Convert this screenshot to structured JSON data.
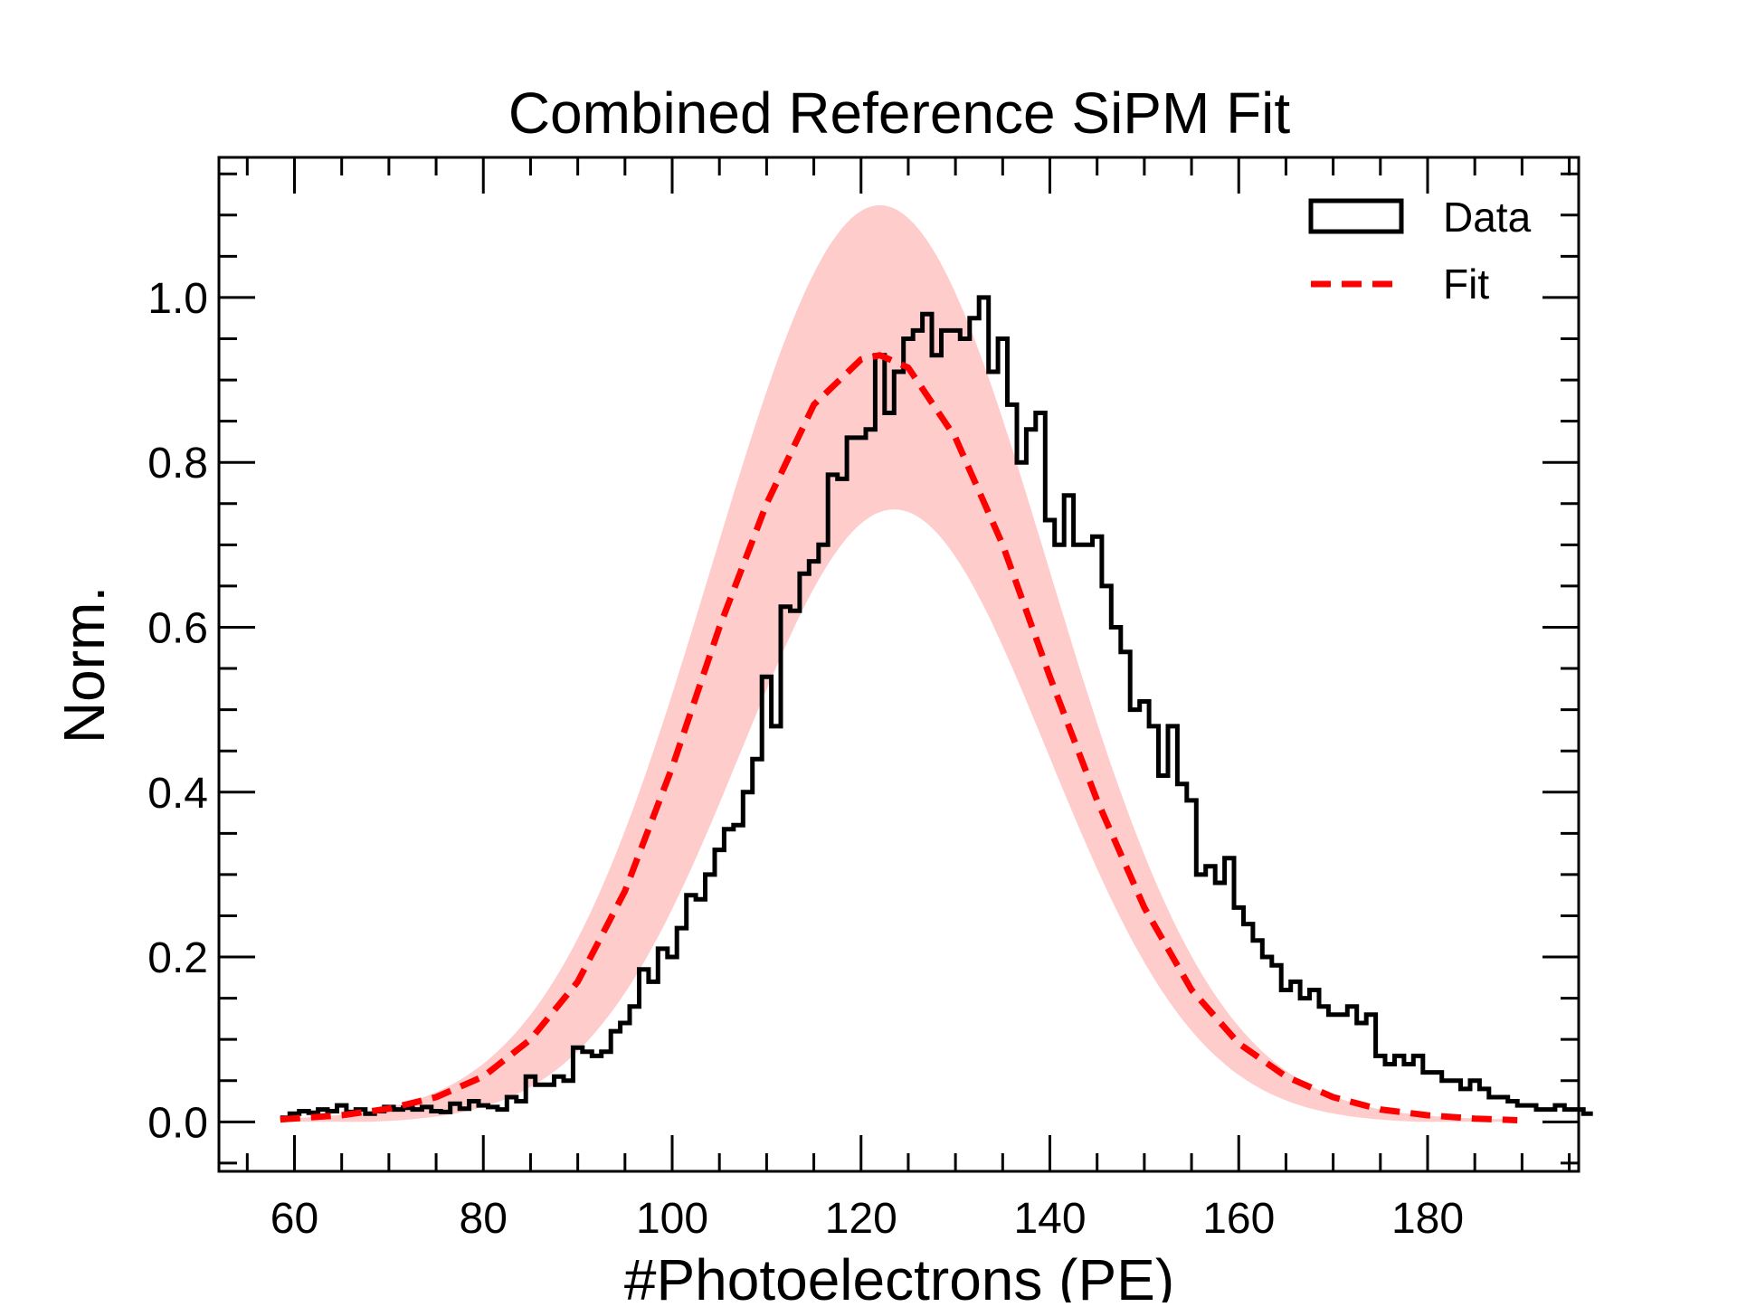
{
  "chart_data": {
    "type": "line",
    "title": "Combined Reference SiPM Fit",
    "xlabel": "#Photoelectrons (PE)",
    "ylabel": "Norm.",
    "xlim": [
      52,
      196
    ],
    "ylim": [
      -0.06,
      1.17
    ],
    "xticks": [
      "60",
      "80",
      "100",
      "120",
      "140",
      "160",
      "180"
    ],
    "yticks": [
      "0.0",
      "0.2",
      "0.4",
      "0.6",
      "0.8",
      "1.0"
    ],
    "grid": false,
    "legend_position": "top-right",
    "legend": [
      {
        "label": "Data",
        "style": "step-outline"
      },
      {
        "label": "Fit",
        "style": "dashed"
      }
    ],
    "colors": {
      "data": "#000000",
      "fit": "#ff0000",
      "band": "#ffcccc"
    },
    "band": {
      "description_x_range": [
        58.5,
        189.5
      ],
      "upper_peak": 1.11,
      "upper_peak_x": 122,
      "lower_peak": 0.745,
      "lower_peak_x": 123.5
    },
    "fit": {
      "x_range": [
        58.5,
        189.5
      ],
      "peak_x": 122,
      "peak_y": 0.93
    },
    "series": [
      {
        "name": "Data",
        "type": "step",
        "x_edges_start": 58.5,
        "bin_width": 1,
        "values": [
          0.005,
          0.01,
          0.013,
          0.011,
          0.015,
          0.013,
          0.02,
          0.012,
          0.015,
          0.01,
          0.013,
          0.018,
          0.015,
          0.017,
          0.015,
          0.018,
          0.013,
          0.012,
          0.022,
          0.016,
          0.025,
          0.02,
          0.018,
          0.015,
          0.03,
          0.025,
          0.055,
          0.045,
          0.045,
          0.055,
          0.05,
          0.09,
          0.085,
          0.08,
          0.085,
          0.11,
          0.12,
          0.14,
          0.185,
          0.17,
          0.21,
          0.2,
          0.235,
          0.275,
          0.27,
          0.3,
          0.33,
          0.355,
          0.36,
          0.4,
          0.44,
          0.54,
          0.48,
          0.625,
          0.62,
          0.665,
          0.68,
          0.7,
          0.785,
          0.78,
          0.83,
          0.83,
          0.84,
          0.93,
          0.86,
          0.91,
          0.95,
          0.96,
          0.98,
          0.93,
          0.96,
          0.96,
          0.95,
          0.975,
          1.0,
          0.91,
          0.95,
          0.87,
          0.8,
          0.84,
          0.86,
          0.73,
          0.7,
          0.76,
          0.7,
          0.7,
          0.71,
          0.65,
          0.6,
          0.57,
          0.5,
          0.51,
          0.48,
          0.42,
          0.48,
          0.41,
          0.39,
          0.3,
          0.31,
          0.29,
          0.32,
          0.26,
          0.24,
          0.22,
          0.2,
          0.19,
          0.16,
          0.17,
          0.15,
          0.16,
          0.14,
          0.13,
          0.13,
          0.14,
          0.12,
          0.13,
          0.08,
          0.07,
          0.08,
          0.07,
          0.08,
          0.06,
          0.06,
          0.05,
          0.05,
          0.04,
          0.05,
          0.04,
          0.03,
          0.03,
          0.025,
          0.02,
          0.02,
          0.015,
          0.015,
          0.02,
          0.015,
          0.015,
          0.01
        ]
      },
      {
        "name": "Fit",
        "type": "dashed-line",
        "x": [
          58.5,
          65,
          70,
          75,
          80,
          85,
          90,
          95,
          100,
          105,
          110,
          115,
          120,
          122,
          125,
          130,
          135,
          140,
          145,
          150,
          155,
          160,
          165,
          170,
          175,
          180,
          185,
          189.5
        ],
        "values": [
          0.003,
          0.008,
          0.016,
          0.03,
          0.055,
          0.1,
          0.17,
          0.28,
          0.43,
          0.6,
          0.75,
          0.87,
          0.925,
          0.93,
          0.915,
          0.83,
          0.7,
          0.54,
          0.39,
          0.26,
          0.16,
          0.095,
          0.055,
          0.03,
          0.015,
          0.008,
          0.004,
          0.002
        ]
      }
    ]
  }
}
